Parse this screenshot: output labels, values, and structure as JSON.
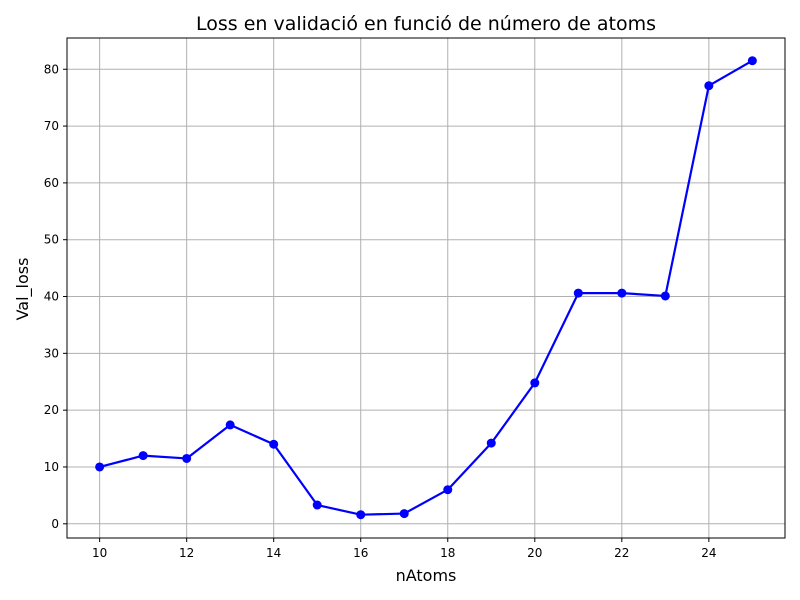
{
  "chart_data": {
    "type": "line",
    "title": "Loss en validació en funció de número de atoms",
    "xlabel": "nAtoms",
    "ylabel": "Val_loss",
    "x": [
      10,
      11,
      12,
      13,
      14,
      15,
      16,
      17,
      18,
      19,
      20,
      21,
      22,
      23,
      24,
      25
    ],
    "series": [
      {
        "values": [
          10.0,
          12.0,
          11.5,
          17.4,
          14.0,
          3.3,
          1.6,
          1.8,
          6.0,
          14.2,
          24.8,
          40.6,
          40.6,
          40.1,
          77.1,
          81.5
        ],
        "color": "#0000ff",
        "marker": "circle"
      }
    ],
    "xlim": [
      9.25,
      25.75
    ],
    "ylim": [
      -2.5,
      85.5
    ],
    "xticks": [
      10,
      12,
      14,
      16,
      18,
      20,
      22,
      24
    ],
    "yticks": [
      0,
      10,
      20,
      30,
      40,
      50,
      60,
      70,
      80
    ],
    "grid": true,
    "legend": "none"
  }
}
